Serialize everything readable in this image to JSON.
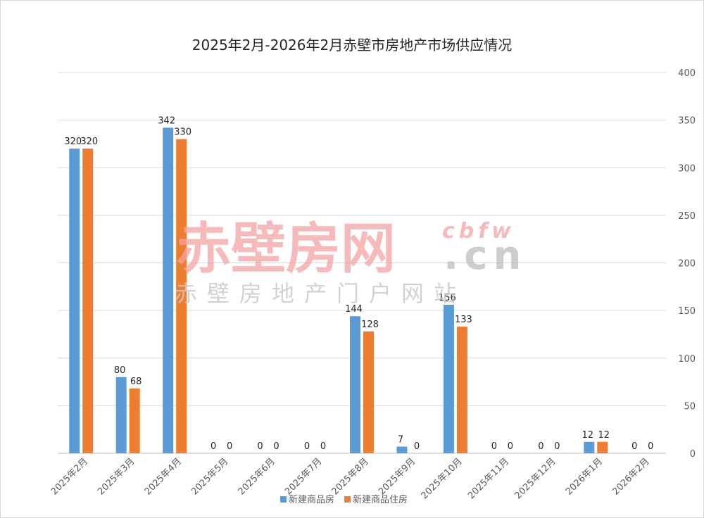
{
  "chart_data": {
    "type": "bar",
    "title": "2025年2月-2026年2月赤壁市房地产市场供应情况",
    "categories": [
      "2025年2月",
      "2025年3月",
      "2025年4月",
      "2025年5月",
      "2025年6月",
      "2025年7月",
      "2025年8月",
      "2025年9月",
      "2025年10月",
      "2025年11月",
      "2025年12月",
      "2026年1月",
      "2026年2月"
    ],
    "series": [
      {
        "name": "新建商品房",
        "color": "#5b9bd5",
        "values": [
          320,
          80,
          342,
          0,
          0,
          0,
          144,
          7,
          156,
          0,
          0,
          12,
          0
        ]
      },
      {
        "name": "新建商品住房",
        "color": "#ed7d31",
        "values": [
          320,
          68,
          330,
          0,
          0,
          0,
          128,
          0,
          133,
          0,
          0,
          12,
          0
        ]
      }
    ],
    "ylim": [
      0,
      400
    ],
    "yticks": [
      0,
      50,
      100,
      150,
      200,
      250,
      300,
      350,
      400
    ],
    "y_axis_side": "right",
    "grid": true,
    "legend": "bottom"
  },
  "watermark": {
    "main": "赤壁房网",
    "latin": "cbfw",
    "domain": ".cn",
    "subtitle": "赤壁房地产门户网站"
  }
}
